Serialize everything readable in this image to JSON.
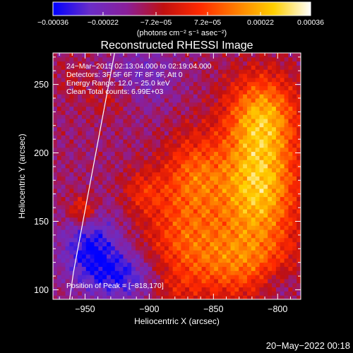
{
  "chart_data": {
    "type": "heatmap",
    "title": "Reconstructed RHESSI Image",
    "xlabel": "Heliocentric X (arcsec)",
    "ylabel": "Heliocentric Y (arcsec)",
    "xlim": [
      -975,
      -782
    ],
    "ylim": [
      93,
      273
    ],
    "xticks": [
      -950,
      -900,
      -850,
      -800
    ],
    "xtick_labels": [
      "−950",
      "−900",
      "−850",
      "−800"
    ],
    "yticks": [
      100,
      150,
      200,
      250
    ],
    "ytick_labels": [
      "100",
      "150",
      "200",
      "250"
    ],
    "colorbar": {
      "min": -0.00036,
      "max": 0.00036,
      "ticks": [
        -0.00036,
        -0.00022,
        -7.2e-05,
        7.2e-05,
        0.00022,
        0.00036
      ],
      "tick_labels": [
        "−0.00036",
        "−0.00022",
        "−7.2e−05",
        "7.2e−05",
        "0.00022",
        "0.00036"
      ],
      "unit_label": "(photons cm⁻² s⁻¹ asec⁻²)",
      "colors": [
        "#0000ff",
        "#6a2dc8",
        "#8a1f9a",
        "#c01010",
        "#ff2a00",
        "#ff7f00",
        "#ffd000",
        "#ffffff"
      ]
    },
    "annotations": [
      "24−Mar−2015 02:13:04.000 to 02:19:04.000",
      "Detectors: 3F 5F 6F 7F 8F 9F, Att 0",
      "Energy Range: 12.0 − 25.0 keV",
      "Clean    Total counts: 6.99E+03",
      "Position of Peak = [−818,170]"
    ],
    "peak": {
      "x": -818,
      "y": 170
    },
    "limb_curve": {
      "x": [
        -962,
        -959,
        -955,
        -951,
        -947,
        -943,
        -939,
        -935,
        -931,
        -927
      ],
      "y": [
        93,
        113,
        133,
        153,
        173,
        193,
        213,
        233,
        253,
        273
      ]
    },
    "intensity_blobs": [
      {
        "x": -815,
        "y": 175,
        "sx": 22,
        "sy": 28,
        "amp": 0.00036
      },
      {
        "x": -812,
        "y": 228,
        "sx": 20,
        "sy": 22,
        "amp": 0.0003
      },
      {
        "x": -830,
        "y": 120,
        "sx": 30,
        "sy": 20,
        "amp": 0.00022
      },
      {
        "x": -865,
        "y": 185,
        "sx": 18,
        "sy": 22,
        "amp": 0.0002
      },
      {
        "x": -875,
        "y": 140,
        "sx": 22,
        "sy": 24,
        "amp": 0.00016
      },
      {
        "x": -905,
        "y": 172,
        "sx": 12,
        "sy": 12,
        "amp": 0.00012
      },
      {
        "x": -952,
        "y": 158,
        "sx": 8,
        "sy": 8,
        "amp": 0.00018
      },
      {
        "x": -930,
        "y": 240,
        "sx": 14,
        "sy": 10,
        "amp": 8e-05
      },
      {
        "x": -960,
        "y": 255,
        "sx": 10,
        "sy": 10,
        "amp": 5e-05
      },
      {
        "x": -945,
        "y": 130,
        "sx": 16,
        "sy": 18,
        "amp": -0.00022
      },
      {
        "x": -920,
        "y": 110,
        "sx": 18,
        "sy": 12,
        "amp": -0.00018
      },
      {
        "x": -905,
        "y": 255,
        "sx": 18,
        "sy": 16,
        "amp": -0.0001
      },
      {
        "x": -880,
        "y": 100,
        "sx": 14,
        "sy": 10,
        "amp": 6e-05
      },
      {
        "x": -800,
        "y": 105,
        "sx": 12,
        "sy": 10,
        "amp": -8e-05
      }
    ],
    "background_level": -0.00012,
    "grid": false
  },
  "footer": {
    "date_stamp": "20−May−2022 00:18"
  }
}
